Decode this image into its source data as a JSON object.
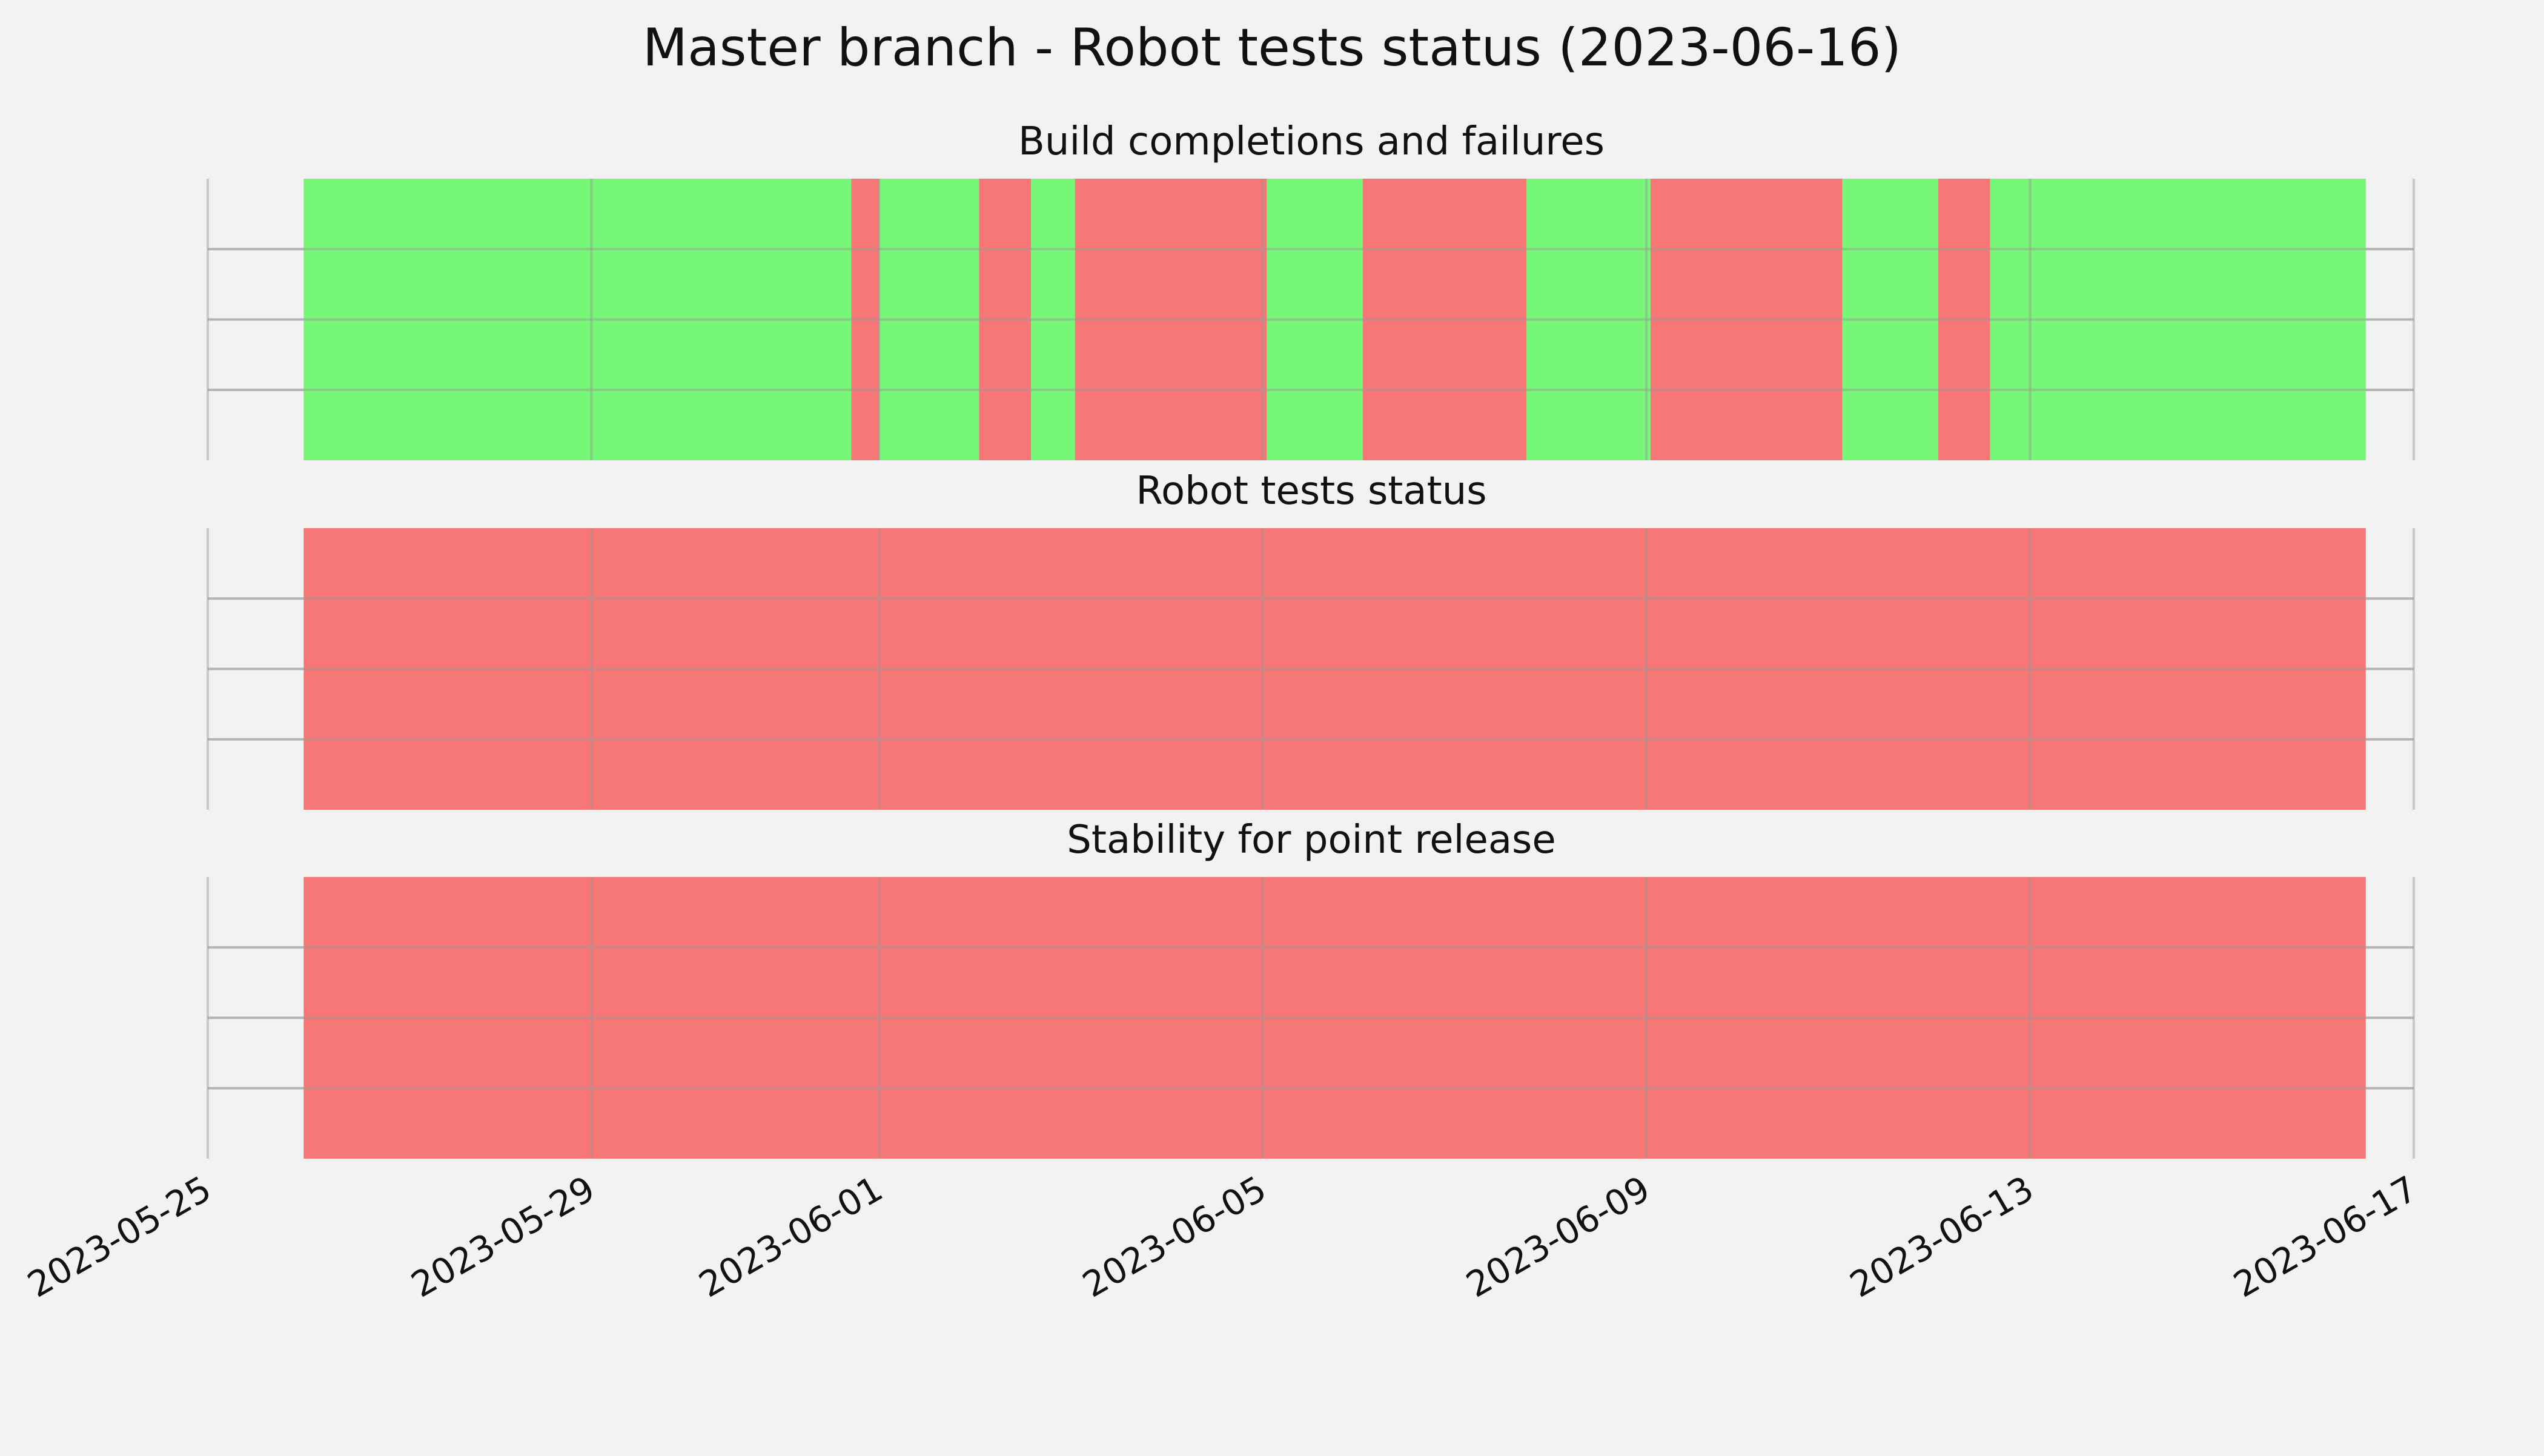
{
  "chart_data": {
    "type": "timeline",
    "title": "Master branch - Robot tests status (2023-06-16)",
    "xlim": [
      "2023-05-25",
      "2023-06-17"
    ],
    "x_ticks": [
      "2023-05-25",
      "2023-05-29",
      "2023-06-01",
      "2023-06-05",
      "2023-06-09",
      "2023-06-13",
      "2023-06-17"
    ],
    "x_tick_labels": [
      "2023-05-25",
      "2023-05-29",
      "2023-06-01",
      "2023-06-05",
      "2023-06-09",
      "2023-06-13",
      "2023-06-17"
    ],
    "grid": true,
    "colors": {
      "success": "#77f777",
      "failure": "#f77777",
      "background": "#f2f2f2",
      "grid": "#cbcbcb"
    },
    "panels": [
      {
        "title": "Build completions and failures",
        "segments": [
          {
            "start": "2023-05-26 00:00",
            "end": "2023-05-31 17:00",
            "status": "success"
          },
          {
            "start": "2023-05-31 17:00",
            "end": "2023-06-01 00:00",
            "status": "failure"
          },
          {
            "start": "2023-06-01 00:00",
            "end": "2023-06-02 01:00",
            "status": "success"
          },
          {
            "start": "2023-06-02 01:00",
            "end": "2023-06-02 14:00",
            "status": "failure"
          },
          {
            "start": "2023-06-02 14:00",
            "end": "2023-06-03 01:00",
            "status": "success"
          },
          {
            "start": "2023-06-03 01:00",
            "end": "2023-06-05 01:00",
            "status": "failure"
          },
          {
            "start": "2023-06-05 01:00",
            "end": "2023-06-06 01:00",
            "status": "success"
          },
          {
            "start": "2023-06-06 01:00",
            "end": "2023-06-07 18:00",
            "status": "failure"
          },
          {
            "start": "2023-06-07 18:00",
            "end": "2023-06-09 01:00",
            "status": "success"
          },
          {
            "start": "2023-06-09 01:00",
            "end": "2023-06-11 01:00",
            "status": "failure"
          },
          {
            "start": "2023-06-11 01:00",
            "end": "2023-06-12 01:00",
            "status": "success"
          },
          {
            "start": "2023-06-12 01:00",
            "end": "2023-06-12 14:00",
            "status": "failure"
          },
          {
            "start": "2023-06-12 14:00",
            "end": "2023-06-16 12:00",
            "status": "success"
          }
        ]
      },
      {
        "title": "Robot tests status",
        "segments": [
          {
            "start": "2023-05-26 00:00",
            "end": "2023-06-16 12:00",
            "status": "failure"
          }
        ]
      },
      {
        "title": "Stability for point release",
        "segments": [
          {
            "start": "2023-05-26 00:00",
            "end": "2023-06-16 12:00",
            "status": "failure"
          }
        ]
      }
    ]
  }
}
